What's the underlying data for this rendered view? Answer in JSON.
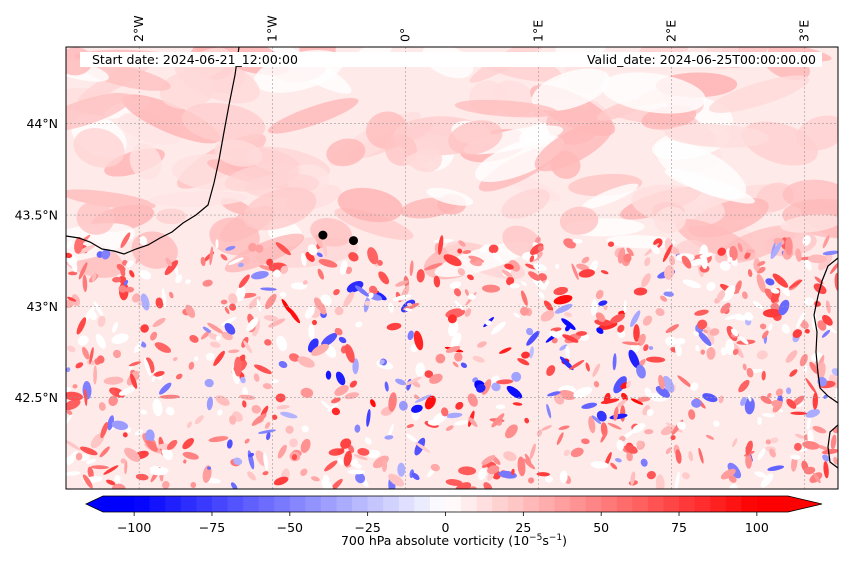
{
  "header": {
    "start_date": "Start date: 2024-06-21_12:00:00",
    "valid_date": "Valid_date: 2024-06-25T00:00:00.00"
  },
  "map": {
    "lon_range": [
      -2.55,
      3.25
    ],
    "lat_range": [
      42.0,
      44.42
    ],
    "lon_ticks": [
      {
        "value": -2,
        "label": "2°W"
      },
      {
        "value": -1,
        "label": "1°W"
      },
      {
        "value": 0,
        "label": "0°"
      },
      {
        "value": 1,
        "label": "1°E"
      },
      {
        "value": 2,
        "label": "2°E"
      },
      {
        "value": 3,
        "label": "3°E"
      }
    ],
    "lat_ticks": [
      {
        "value": 44.0,
        "label": "44°N"
      },
      {
        "value": 43.5,
        "label": "43.5°N"
      },
      {
        "value": 43.0,
        "label": "43°N"
      },
      {
        "value": 42.5,
        "label": "42.5°N"
      }
    ],
    "points": [
      {
        "name": "point-1",
        "lon": -0.62,
        "lat": 43.39
      },
      {
        "name": "point-2",
        "lon": -0.39,
        "lat": 43.36
      }
    ],
    "field": "700 hPa absolute vorticity"
  },
  "colorbar": {
    "min": -110,
    "max": 110,
    "ticks": [
      {
        "value": -100,
        "label": "−100"
      },
      {
        "value": -75,
        "label": "−75"
      },
      {
        "value": -50,
        "label": "−50"
      },
      {
        "value": -25,
        "label": "−25"
      },
      {
        "value": 0,
        "label": "0"
      },
      {
        "value": 25,
        "label": "25"
      },
      {
        "value": 50,
        "label": "50"
      },
      {
        "value": 75,
        "label": "75"
      },
      {
        "value": 100,
        "label": "100"
      }
    ],
    "label_main": "700 hPa absolute vorticity (10",
    "label_exp1": "−5",
    "label_mid": "s",
    "label_exp2": "−1",
    "label_end": ")",
    "colors": {
      "neg": "#0000ff",
      "zero": "#ffffff",
      "pos": "#ff0000"
    }
  }
}
